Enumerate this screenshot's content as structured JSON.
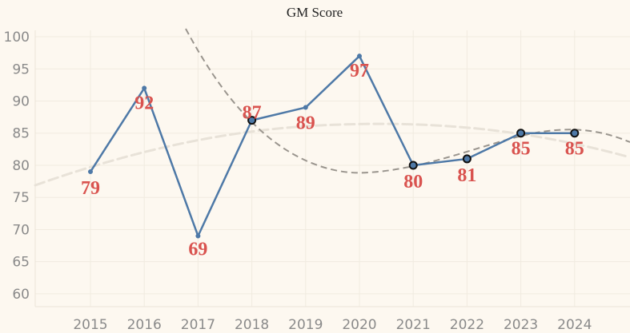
{
  "chart_data": {
    "type": "line",
    "title": "GM Score",
    "xlabel": "",
    "ylabel": "",
    "categories": [
      "2015",
      "2016",
      "2017",
      "2018",
      "2019",
      "2020",
      "2021",
      "2022",
      "2023",
      "2024"
    ],
    "series": [
      {
        "values": [
          79,
          92,
          69,
          87,
          89,
          97,
          80,
          81,
          85,
          85
        ],
        "color": "#4e79a7"
      }
    ],
    "data_labels": [
      "79",
      "92",
      "69",
      "87",
      "89",
      "97",
      "80",
      "81",
      "85",
      "85"
    ],
    "highlighted_points": [
      "2018",
      "2021",
      "2022",
      "2023",
      "2024"
    ],
    "yticks": [
      60,
      65,
      70,
      75,
      80,
      85,
      90,
      95,
      100
    ],
    "ylim": [
      58,
      101
    ],
    "grid": true,
    "trend_lines": [
      {
        "style": "dashed",
        "color": "#9a958e"
      },
      {
        "style": "dashed",
        "color": "#e8e2d8"
      }
    ],
    "colors": {
      "background": "#fdf8f0",
      "line": "#4e79a7",
      "label": "#d9534f",
      "grid": "#f1ebe0"
    }
  }
}
